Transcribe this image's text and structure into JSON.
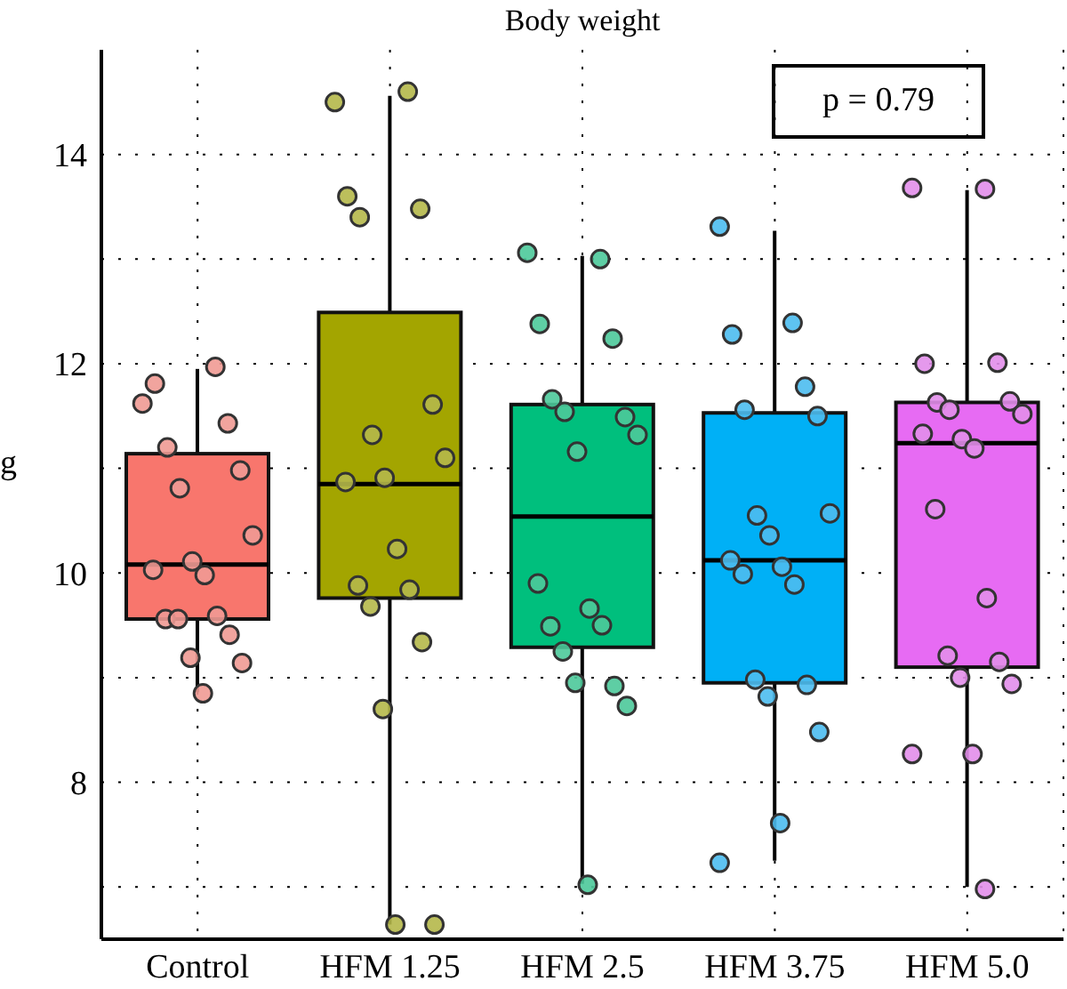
{
  "chart_data": {
    "type": "box",
    "title": "Body weight",
    "ylabel": "g",
    "categories": [
      "Control",
      "HFM 1.25",
      "HFM 2.5",
      "HFM 3.75",
      "HFM 5.0"
    ],
    "ylim": [
      6.5,
      15
    ],
    "yticks": [
      {
        "value": 7,
        "label": null
      },
      8,
      {
        "value": 9,
        "label": null
      },
      10,
      {
        "value": 11,
        "label": null
      },
      12,
      {
        "value": 13,
        "label": null
      },
      14
    ],
    "grid": true,
    "legend": false,
    "marker": "circle",
    "annotations": [
      "p = 0.79"
    ],
    "series": [
      {
        "type": "box",
        "colors": [
          "#f8766d",
          "#a3a500",
          "#00bf7d",
          "#00b0f6",
          "#e76bf3"
        ],
        "boxes": [
          {
            "low": 8.86,
            "q1": 9.56,
            "median": 10.08,
            "q3": 11.14,
            "high": 11.95
          },
          {
            "low": 6.64,
            "q1": 9.76,
            "median": 10.85,
            "q3": 12.49,
            "high": 14.56
          },
          {
            "low": 7.03,
            "q1": 9.29,
            "median": 10.54,
            "q3": 11.61,
            "high": 13.03
          },
          {
            "low": 7.25,
            "q1": 8.95,
            "median": 10.12,
            "q3": 11.53,
            "high": 13.27
          },
          {
            "low": 7.0,
            "q1": 9.1,
            "median": 11.24,
            "q3": 11.63,
            "high": 13.66
          }
        ]
      },
      {
        "type": "scatter",
        "color": "#f09a94",
        "x": [
          "Control",
          "Control",
          "Control",
          "Control",
          "Control",
          "Control",
          "Control",
          "Control",
          "Control",
          "Control",
          "Control",
          "Control",
          "Control",
          "Control",
          "Control",
          "Control",
          "Control",
          "Control"
        ],
        "values": [
          11.62,
          11.97,
          11.81,
          11.43,
          11.2,
          10.98,
          10.81,
          10.36,
          10.11,
          10.03,
          9.98,
          9.56,
          9.59,
          9.56,
          9.41,
          9.19,
          9.14,
          8.85
        ]
      },
      {
        "type": "scatter",
        "color": "#b5b84a",
        "x": [
          "HFM 1.25",
          "HFM 1.25",
          "HFM 1.25",
          "HFM 1.25",
          "HFM 1.25",
          "HFM 1.25",
          "HFM 1.25",
          "HFM 1.25",
          "HFM 1.25",
          "HFM 1.25",
          "HFM 1.25",
          "HFM 1.25",
          "HFM 1.25",
          "HFM 1.25",
          "HFM 1.25",
          "HFM 1.25",
          "HFM 1.25",
          "HFM 1.25"
        ],
        "values": [
          14.5,
          14.6,
          13.6,
          13.48,
          13.4,
          11.61,
          11.32,
          11.1,
          10.91,
          10.87,
          10.23,
          9.88,
          9.84,
          9.68,
          9.34,
          8.7,
          6.64,
          6.64
        ]
      },
      {
        "type": "scatter",
        "color": "#4cc99a",
        "x": [
          "HFM 2.5",
          "HFM 2.5",
          "HFM 2.5",
          "HFM 2.5",
          "HFM 2.5",
          "HFM 2.5",
          "HFM 2.5",
          "HFM 2.5",
          "HFM 2.5",
          "HFM 2.5",
          "HFM 2.5",
          "HFM 2.5",
          "HFM 2.5",
          "HFM 2.5",
          "HFM 2.5",
          "HFM 2.5",
          "HFM 2.5",
          "HFM 2.5"
        ],
        "values": [
          13.06,
          13.0,
          12.38,
          12.24,
          11.66,
          11.49,
          11.54,
          11.32,
          11.16,
          9.9,
          9.66,
          9.49,
          9.5,
          9.25,
          8.92,
          8.95,
          8.73,
          7.02
        ]
      },
      {
        "type": "scatter",
        "color": "#4cbdf0",
        "x": [
          "HFM 3.75",
          "HFM 3.75",
          "HFM 3.75",
          "HFM 3.75",
          "HFM 3.75",
          "HFM 3.75",
          "HFM 3.75",
          "HFM 3.75",
          "HFM 3.75",
          "HFM 3.75",
          "HFM 3.75",
          "HFM 3.75",
          "HFM 3.75",
          "HFM 3.75",
          "HFM 3.75",
          "HFM 3.75",
          "HFM 3.75",
          "HFM 3.75",
          "HFM 3.75"
        ],
        "values": [
          13.31,
          12.39,
          12.28,
          11.78,
          11.56,
          11.5,
          10.55,
          10.57,
          10.36,
          10.12,
          10.06,
          9.99,
          9.89,
          8.98,
          8.93,
          8.82,
          8.48,
          7.61,
          7.23
        ]
      },
      {
        "type": "scatter",
        "color": "#e28eea",
        "x": [
          "HFM 5.0",
          "HFM 5.0",
          "HFM 5.0",
          "HFM 5.0",
          "HFM 5.0",
          "HFM 5.0",
          "HFM 5.0",
          "HFM 5.0",
          "HFM 5.0",
          "HFM 5.0",
          "HFM 5.0",
          "HFM 5.0",
          "HFM 5.0",
          "HFM 5.0",
          "HFM 5.0",
          "HFM 5.0",
          "HFM 5.0",
          "HFM 5.0",
          "HFM 5.0",
          "HFM 5.0"
        ],
        "values": [
          13.68,
          13.67,
          12.0,
          12.01,
          11.63,
          11.64,
          11.56,
          11.52,
          11.28,
          11.33,
          11.19,
          10.61,
          9.76,
          9.21,
          9.15,
          9.0,
          8.94,
          8.27,
          8.27,
          6.98
        ]
      }
    ]
  }
}
